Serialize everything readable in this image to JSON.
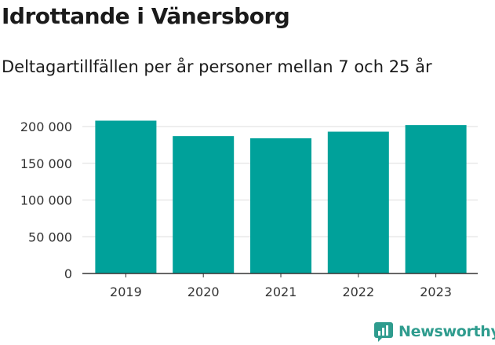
{
  "title": "Idrottande i Vänersborg",
  "subtitle": "Deltagartillfällen per år personer mellan 7 och 25 år",
  "brand": "Newsworthy",
  "colors": {
    "bar": "#00a19a",
    "grid": "#dddddd",
    "axis": "#333333",
    "brand": "#2f9c8e"
  },
  "chart_data": {
    "type": "bar",
    "title": "Idrottande i Vänersborg",
    "subtitle": "Deltagartillfällen per år personer mellan 7 och 25 år",
    "categories": [
      "2019",
      "2020",
      "2021",
      "2022",
      "2023"
    ],
    "values": [
      208000,
      187000,
      184000,
      193000,
      202000
    ],
    "ylim": [
      0,
      200000
    ],
    "yticks": [
      0,
      50000,
      100000,
      150000,
      200000
    ],
    "ytick_labels": [
      "0",
      "50 000",
      "100 000",
      "150 000",
      "200 000"
    ],
    "xlabel": "",
    "ylabel": "",
    "grid": true,
    "legend": "none"
  }
}
